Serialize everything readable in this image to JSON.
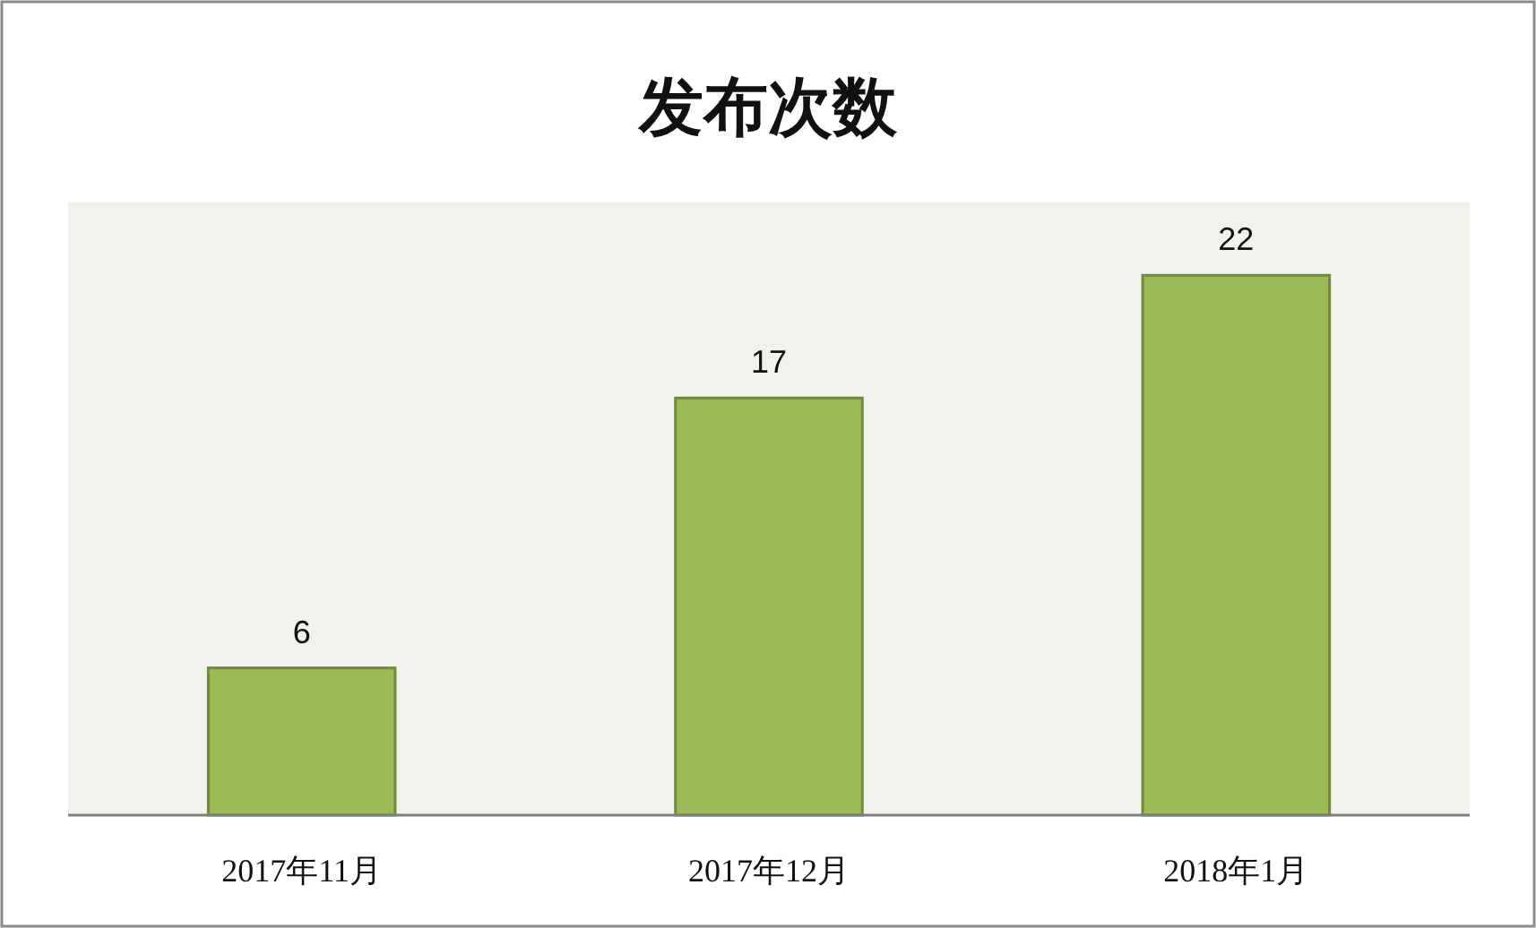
{
  "chart_data": {
    "type": "bar",
    "title": "发布次数",
    "categories": [
      "2017年11月",
      "2017年12月",
      "2018年1月"
    ],
    "values": [
      6,
      17,
      22
    ],
    "color": "#9bbb59",
    "data_labels": true
  }
}
